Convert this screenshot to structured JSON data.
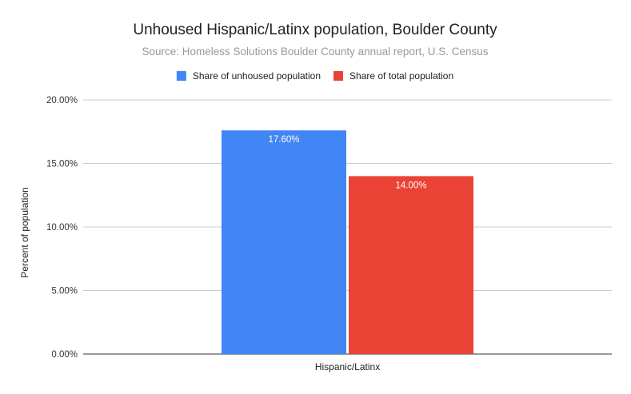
{
  "chart_data": {
    "type": "bar",
    "title": "Unhoused Hispanic/Latinx population, Boulder County",
    "subtitle": "Source: Homeless Solutions Boulder County annual report, U.S. Census",
    "xlabel": "",
    "ylabel": "Percent of population",
    "categories": [
      "Hispanic/Latinx"
    ],
    "series": [
      {
        "name": "Share of unhoused population",
        "values": [
          17.6
        ],
        "labels": [
          "17.60%"
        ],
        "color": "#4285F4"
      },
      {
        "name": "Share of total population",
        "values": [
          14.0
        ],
        "labels": [
          "14.00%"
        ],
        "color": "#EA4335"
      }
    ],
    "ylim": [
      0,
      20
    ],
    "yticks": [
      0,
      5,
      10,
      15,
      20
    ],
    "ytick_labels": [
      "0.00%",
      "5.00%",
      "10.00%",
      "15.00%",
      "20.00%"
    ],
    "grid": true,
    "legend_position": "top"
  }
}
